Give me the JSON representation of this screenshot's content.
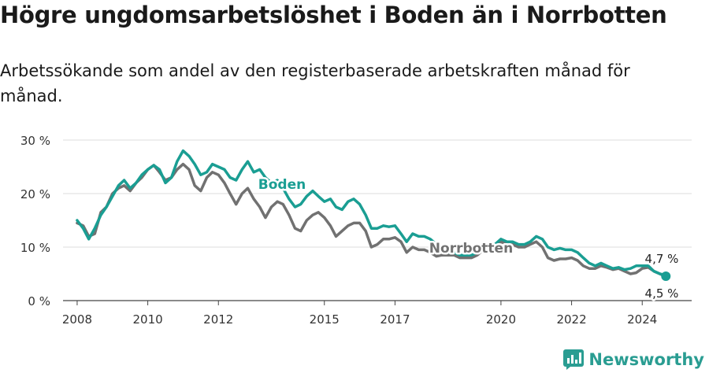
{
  "title": "Högre ungdomsarbetslöshet i Boden än i Norrbotten",
  "subtitle": "Arbetssökande som andel av den registerbaserade arbetskraften månad för månad.",
  "brand": {
    "name": "Newsworthy",
    "color": "#2a9d92"
  },
  "chart_data": {
    "type": "line",
    "xlabel": "",
    "ylabel": "",
    "xlim": [
      2007.6,
      2025.4
    ],
    "ylim": [
      0,
      30
    ],
    "x_ticks": [
      2008,
      2010,
      2012,
      2015,
      2017,
      2020,
      2022,
      2024
    ],
    "y_ticks": [
      {
        "value": 0,
        "label": "0 %"
      },
      {
        "value": 10,
        "label": "10 %"
      },
      {
        "value": 20,
        "label": "20 %"
      },
      {
        "value": 30,
        "label": "30 %"
      }
    ],
    "grid": "horizontal",
    "series": [
      {
        "name": "Boden",
        "color": "#1a9e93",
        "x": [
          2008.0,
          2008.17,
          2008.33,
          2008.5,
          2008.67,
          2008.83,
          2009.0,
          2009.17,
          2009.33,
          2009.5,
          2009.67,
          2009.83,
          2010.0,
          2010.17,
          2010.33,
          2010.5,
          2010.67,
          2010.83,
          2011.0,
          2011.17,
          2011.33,
          2011.5,
          2011.67,
          2011.83,
          2012.0,
          2012.17,
          2012.33,
          2012.5,
          2012.67,
          2012.83,
          2013.0,
          2013.17,
          2013.33,
          2013.5,
          2013.67,
          2013.83,
          2014.0,
          2014.17,
          2014.33,
          2014.5,
          2014.67,
          2014.83,
          2015.0,
          2015.17,
          2015.33,
          2015.5,
          2015.67,
          2015.83,
          2016.0,
          2016.17,
          2016.33,
          2016.5,
          2016.67,
          2016.83,
          2017.0,
          2017.17,
          2017.33,
          2017.5,
          2017.67,
          2017.83,
          2018.0,
          2018.17,
          2018.33,
          2018.5,
          2018.67,
          2018.83,
          2019.0,
          2019.17,
          2019.33,
          2019.5,
          2019.67,
          2019.83,
          2020.0,
          2020.17,
          2020.33,
          2020.5,
          2020.67,
          2020.83,
          2021.0,
          2021.17,
          2021.33,
          2021.5,
          2021.67,
          2021.83,
          2022.0,
          2022.17,
          2022.33,
          2022.5,
          2022.67,
          2022.83,
          2023.0,
          2023.17,
          2023.33,
          2023.5,
          2023.67,
          2023.83,
          2024.0,
          2024.17,
          2024.33,
          2024.5,
          2024.67
        ],
        "values": [
          15.0,
          13.5,
          11.5,
          13.5,
          16.0,
          17.5,
          19.5,
          21.5,
          22.5,
          21.0,
          22.0,
          23.5,
          24.5,
          25.3,
          24.5,
          22.0,
          23.0,
          26.0,
          28.0,
          27.0,
          25.5,
          23.5,
          24.0,
          25.5,
          25.0,
          24.5,
          23.0,
          22.5,
          24.5,
          26.0,
          24.0,
          24.5,
          23.0,
          22.0,
          22.5,
          21.0,
          19.0,
          17.5,
          18.0,
          19.5,
          20.5,
          19.5,
          18.5,
          19.0,
          17.5,
          17.0,
          18.5,
          19.0,
          18.0,
          16.0,
          13.5,
          13.5,
          14.0,
          13.8,
          14.0,
          12.5,
          11.0,
          12.5,
          12.0,
          12.0,
          11.5,
          10.5,
          9.5,
          9.0,
          9.0,
          8.5,
          8.5,
          8.5,
          9.0,
          9.5,
          10.0,
          10.5,
          11.5,
          11.0,
          11.0,
          10.5,
          10.5,
          11.0,
          12.0,
          11.5,
          10.0,
          9.5,
          9.8,
          9.5,
          9.5,
          9.0,
          8.0,
          7.0,
          6.5,
          7.0,
          6.5,
          6.0,
          6.2,
          5.8,
          6.0,
          6.5,
          6.5,
          6.5,
          5.5,
          5.0,
          4.7
        ]
      },
      {
        "name": "Norrbotten",
        "color": "#717171",
        "x": [
          2008.0,
          2008.17,
          2008.33,
          2008.5,
          2008.67,
          2008.83,
          2009.0,
          2009.17,
          2009.33,
          2009.5,
          2009.67,
          2009.83,
          2010.0,
          2010.17,
          2010.33,
          2010.5,
          2010.67,
          2010.83,
          2011.0,
          2011.17,
          2011.33,
          2011.5,
          2011.67,
          2011.83,
          2012.0,
          2012.17,
          2012.33,
          2012.5,
          2012.67,
          2012.83,
          2013.0,
          2013.17,
          2013.33,
          2013.5,
          2013.67,
          2013.83,
          2014.0,
          2014.17,
          2014.33,
          2014.5,
          2014.67,
          2014.83,
          2015.0,
          2015.17,
          2015.33,
          2015.5,
          2015.67,
          2015.83,
          2016.0,
          2016.17,
          2016.33,
          2016.5,
          2016.67,
          2016.83,
          2017.0,
          2017.17,
          2017.33,
          2017.5,
          2017.67,
          2017.83,
          2018.0,
          2018.17,
          2018.33,
          2018.5,
          2018.67,
          2018.83,
          2019.0,
          2019.17,
          2019.33,
          2019.5,
          2019.67,
          2019.83,
          2020.0,
          2020.17,
          2020.33,
          2020.5,
          2020.67,
          2020.83,
          2021.0,
          2021.17,
          2021.33,
          2021.5,
          2021.67,
          2021.83,
          2022.0,
          2022.17,
          2022.33,
          2022.5,
          2022.67,
          2022.83,
          2023.0,
          2023.17,
          2023.33,
          2023.5,
          2023.67,
          2023.83,
          2024.0,
          2024.17,
          2024.33,
          2024.5,
          2024.67
        ],
        "values": [
          14.5,
          14.0,
          12.0,
          12.5,
          16.5,
          17.5,
          20.0,
          21.0,
          21.5,
          20.5,
          22.0,
          23.0,
          24.5,
          25.3,
          24.0,
          22.5,
          23.0,
          24.5,
          25.5,
          24.5,
          21.5,
          20.5,
          23.0,
          24.0,
          23.5,
          22.0,
          20.0,
          18.0,
          20.0,
          21.0,
          19.0,
          17.5,
          15.5,
          17.5,
          18.5,
          18.0,
          16.0,
          13.5,
          13.0,
          15.0,
          16.0,
          16.5,
          15.5,
          14.0,
          12.0,
          13.0,
          14.0,
          14.5,
          14.5,
          13.0,
          10.0,
          10.5,
          11.5,
          11.5,
          11.8,
          11.0,
          9.0,
          10.0,
          9.5,
          9.5,
          9.0,
          8.3,
          8.5,
          8.5,
          8.5,
          8.0,
          8.0,
          8.0,
          8.5,
          9.5,
          10.0,
          10.5,
          11.0,
          10.5,
          10.5,
          10.0,
          10.0,
          10.5,
          11.0,
          10.0,
          8.0,
          7.5,
          7.8,
          7.8,
          8.0,
          7.5,
          6.5,
          6.0,
          6.0,
          6.5,
          6.2,
          5.8,
          6.0,
          5.5,
          5.0,
          5.2,
          6.0,
          6.2,
          5.5,
          5.0,
          4.5
        ]
      }
    ],
    "annotations": [
      {
        "text": "Boden",
        "series": 0
      },
      {
        "text": "Norrbotten",
        "series": 1
      },
      {
        "text": "4,7 %",
        "series": 0,
        "point": "last"
      },
      {
        "text": "4,5 %",
        "series": 1,
        "point": "last"
      }
    ]
  }
}
